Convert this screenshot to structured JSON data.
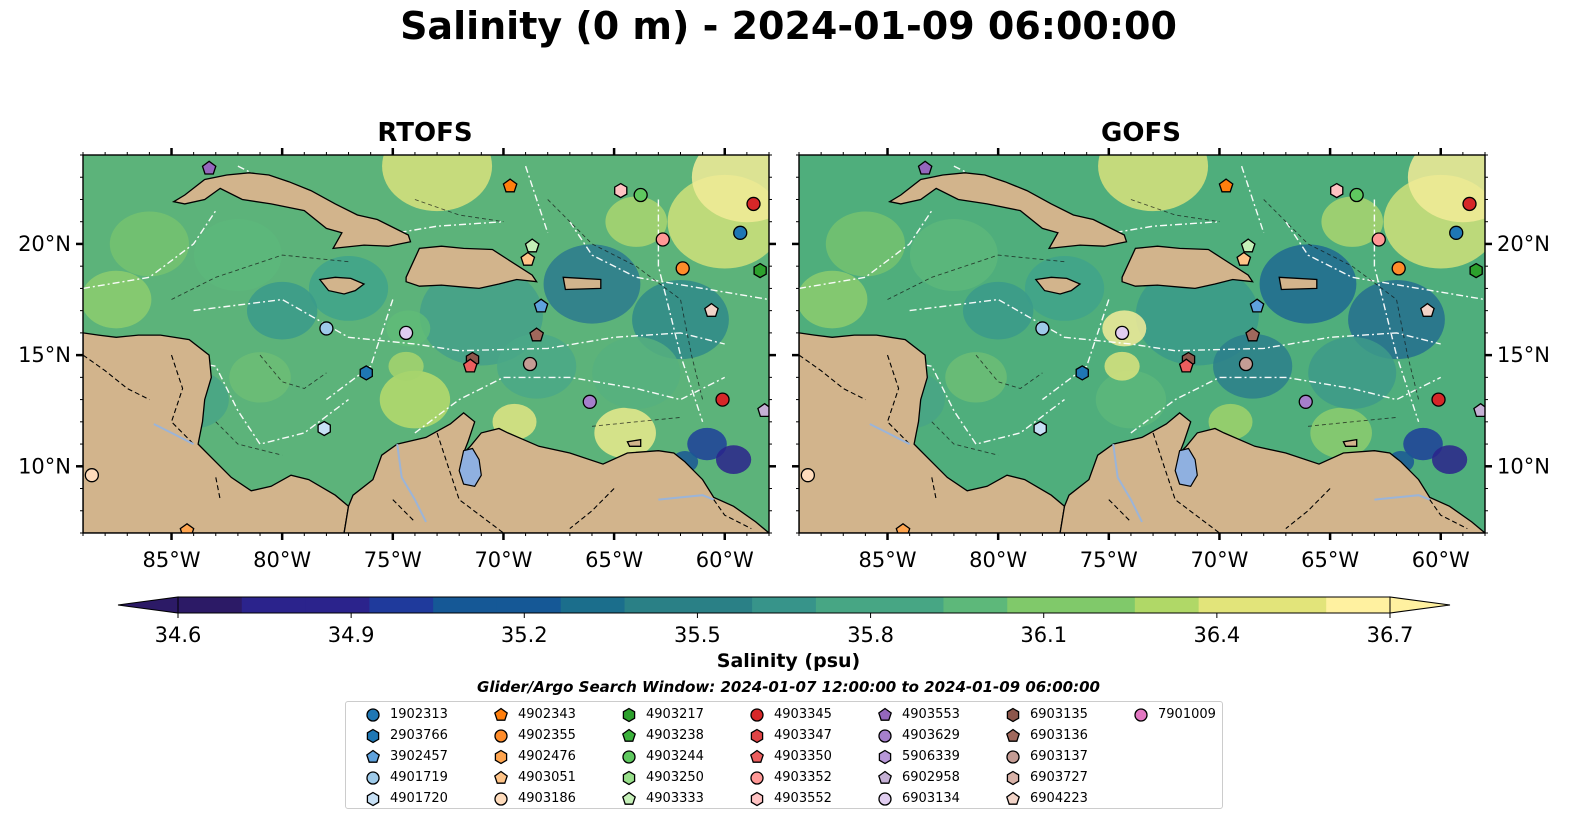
{
  "title": "Salinity (0 m) - 2024-01-09 06:00:00",
  "panels": [
    {
      "title": "RTOFS"
    },
    {
      "title": "GOFS"
    }
  ],
  "map": {
    "lon_range": [
      -89,
      -58
    ],
    "lat_range": [
      7,
      24
    ],
    "x_ticks": [
      "85°W",
      "80°W",
      "75°W",
      "70°W",
      "65°W",
      "60°W"
    ],
    "y_ticks": [
      "20°N",
      "15°N",
      "10°N"
    ],
    "land_color": "#d2b48c",
    "ocean_deep_color": "#2a1a6a",
    "lake_color": "#8fb0e0"
  },
  "colorbar": {
    "ticks": [
      "34.6",
      "34.9",
      "35.2",
      "35.5",
      "35.8",
      "36.1",
      "36.4",
      "36.7"
    ],
    "label": "Salinity (psu)",
    "cmap": [
      "#2c1a66",
      "#2b238c",
      "#1f3a9c",
      "#155896",
      "#1b6e8c",
      "#2a8086",
      "#37948a",
      "#47a684",
      "#5db87a",
      "#80c96a",
      "#b0d867",
      "#e2e47a",
      "#fff1a0"
    ]
  },
  "search_window": "Glider/Argo Search Window: 2024-01-07 12:00:00 to 2024-01-09 06:00:00",
  "legend": [
    {
      "id": "1902313",
      "color": "#1f77b4",
      "marker": "circle"
    },
    {
      "id": "2903766",
      "color": "#1f77b4",
      "marker": "hexagon"
    },
    {
      "id": "3902457",
      "color": "#5fa2dd",
      "marker": "pentagon"
    },
    {
      "id": "4901719",
      "color": "#9ecae9",
      "marker": "circle"
    },
    {
      "id": "4901720",
      "color": "#c7e0f5",
      "marker": "hexagon"
    },
    {
      "id": "4902343",
      "color": "#ff7f0e",
      "marker": "pentagon"
    },
    {
      "id": "4902355",
      "color": "#ff8c2a",
      "marker": "circle"
    },
    {
      "id": "4902476",
      "color": "#ffa54f",
      "marker": "hexagon"
    },
    {
      "id": "4903051",
      "color": "#ffc488",
      "marker": "pentagon"
    },
    {
      "id": "4903186",
      "color": "#ffdcbc",
      "marker": "circle"
    },
    {
      "id": "4903217",
      "color": "#2ca02c",
      "marker": "hexagon"
    },
    {
      "id": "4903238",
      "color": "#3cb23c",
      "marker": "pentagon"
    },
    {
      "id": "4903244",
      "color": "#5fc85f",
      "marker": "circle"
    },
    {
      "id": "4903250",
      "color": "#98df8a",
      "marker": "hexagon"
    },
    {
      "id": "4903333",
      "color": "#c5f0b8",
      "marker": "pentagon"
    },
    {
      "id": "4903345",
      "color": "#d62728",
      "marker": "circle"
    },
    {
      "id": "4903347",
      "color": "#e04445",
      "marker": "hexagon"
    },
    {
      "id": "4903350",
      "color": "#ec5e5e",
      "marker": "pentagon"
    },
    {
      "id": "4903352",
      "color": "#ff9896",
      "marker": "circle"
    },
    {
      "id": "4903552",
      "color": "#ffc3c3",
      "marker": "hexagon"
    },
    {
      "id": "4903553",
      "color": "#9467bd",
      "marker": "pentagon"
    },
    {
      "id": "4903629",
      "color": "#a57fcb",
      "marker": "circle"
    },
    {
      "id": "5906339",
      "color": "#b898d8",
      "marker": "hexagon"
    },
    {
      "id": "6902958",
      "color": "#c5b0d5",
      "marker": "pentagon"
    },
    {
      "id": "6903134",
      "color": "#e0cdf0",
      "marker": "circle"
    },
    {
      "id": "6903135",
      "color": "#8c564b",
      "marker": "hexagon"
    },
    {
      "id": "6903136",
      "color": "#a0685c",
      "marker": "pentagon"
    },
    {
      "id": "6903137",
      "color": "#c49c94",
      "marker": "circle"
    },
    {
      "id": "6903727",
      "color": "#d8b2a8",
      "marker": "hexagon"
    },
    {
      "id": "6904223",
      "color": "#f2d4c8",
      "marker": "pentagon"
    },
    {
      "id": "7901009",
      "color": "#e377c2",
      "marker": "circle"
    }
  ],
  "floats": [
    {
      "lon": -83.3,
      "lat": 23.4,
      "color": "#9467bd",
      "marker": "pentagon"
    },
    {
      "lon": -69.7,
      "lat": 22.6,
      "color": "#ff7f0e",
      "marker": "pentagon"
    },
    {
      "lon": -64.7,
      "lat": 22.4,
      "color": "#ffc3c3",
      "marker": "hexagon"
    },
    {
      "lon": -63.8,
      "lat": 22.2,
      "color": "#5fc85f",
      "marker": "circle"
    },
    {
      "lon": -58.7,
      "lat": 21.8,
      "color": "#d62728",
      "marker": "circle"
    },
    {
      "lon": -59.3,
      "lat": 20.5,
      "color": "#1f77b4",
      "marker": "circle"
    },
    {
      "lon": -62.8,
      "lat": 20.2,
      "color": "#ff9896",
      "marker": "circle"
    },
    {
      "lon": -68.7,
      "lat": 19.9,
      "color": "#c5f0b8",
      "marker": "pentagon"
    },
    {
      "lon": -68.9,
      "lat": 19.3,
      "color": "#ffc488",
      "marker": "pentagon"
    },
    {
      "lon": -61.9,
      "lat": 18.9,
      "color": "#ff8c2a",
      "marker": "circle"
    },
    {
      "lon": -58.4,
      "lat": 18.8,
      "color": "#2ca02c",
      "marker": "hexagon"
    },
    {
      "lon": -68.3,
      "lat": 17.2,
      "color": "#5fa2dd",
      "marker": "pentagon"
    },
    {
      "lon": -60.6,
      "lat": 17.0,
      "color": "#f2d4c8",
      "marker": "pentagon"
    },
    {
      "lon": -78.0,
      "lat": 16.2,
      "color": "#9ecae9",
      "marker": "circle"
    },
    {
      "lon": -74.4,
      "lat": 16.0,
      "color": "#e0cdf0",
      "marker": "circle"
    },
    {
      "lon": -68.5,
      "lat": 15.9,
      "color": "#a0685c",
      "marker": "pentagon"
    },
    {
      "lon": -71.4,
      "lat": 14.8,
      "color": "#8c564b",
      "marker": "hexagon"
    },
    {
      "lon": -71.5,
      "lat": 14.5,
      "color": "#ec5e5e",
      "marker": "pentagon"
    },
    {
      "lon": -68.8,
      "lat": 14.6,
      "color": "#c49c94",
      "marker": "circle"
    },
    {
      "lon": -76.2,
      "lat": 14.2,
      "color": "#1f77b4",
      "marker": "hexagon"
    },
    {
      "lon": -66.1,
      "lat": 12.9,
      "color": "#a57fcb",
      "marker": "circle"
    },
    {
      "lon": -60.1,
      "lat": 13.0,
      "color": "#d62728",
      "marker": "circle"
    },
    {
      "lon": -58.2,
      "lat": 12.5,
      "color": "#c5b0d5",
      "marker": "pentagon"
    },
    {
      "lon": -78.1,
      "lat": 11.7,
      "color": "#c7e0f5",
      "marker": "hexagon"
    },
    {
      "lon": -88.6,
      "lat": 9.6,
      "color": "#ffdcbc",
      "marker": "circle"
    },
    {
      "lon": -84.3,
      "lat": 7.1,
      "color": "#ffa54f",
      "marker": "pentagon"
    }
  ]
}
